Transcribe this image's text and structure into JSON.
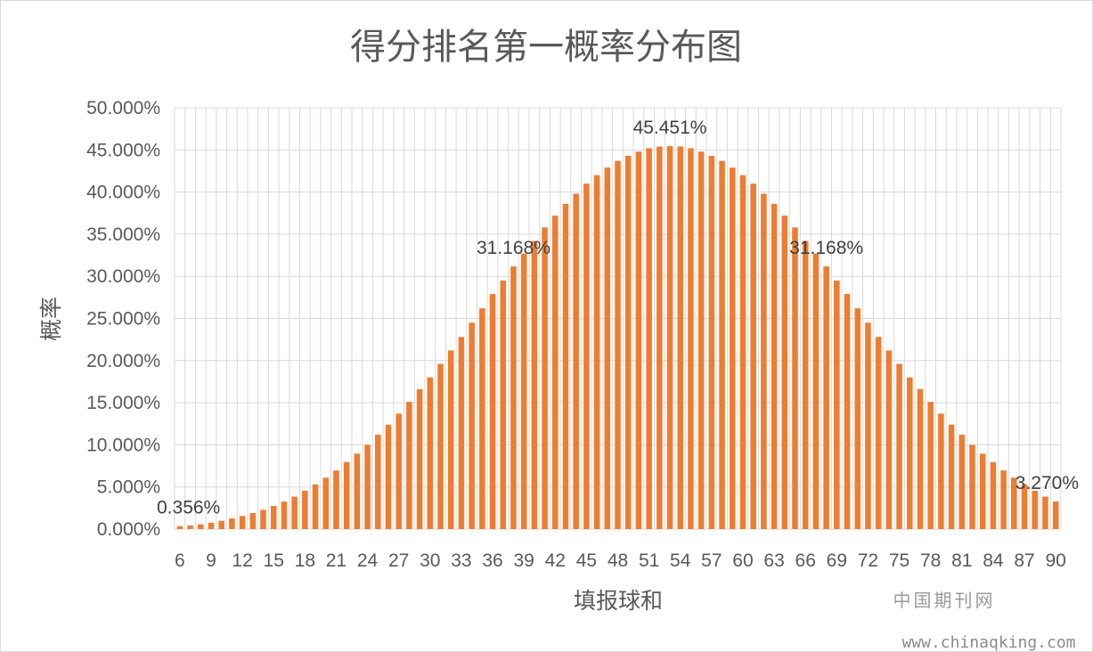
{
  "chart_data": {
    "type": "bar",
    "title": "得分排名第一概率分布图",
    "xlabel": "填报球和",
    "ylabel": "概率",
    "ylim": [
      0,
      50
    ],
    "y_ticks": [
      "0.000%",
      "5.000%",
      "10.000%",
      "15.000%",
      "20.000%",
      "25.000%",
      "30.000%",
      "35.000%",
      "40.000%",
      "45.000%",
      "50.000%"
    ],
    "x_tick_labels": [
      "6",
      "9",
      "12",
      "15",
      "18",
      "21",
      "24",
      "27",
      "30",
      "33",
      "36",
      "39",
      "42",
      "45",
      "48",
      "51",
      "54",
      "57",
      "60",
      "63",
      "66",
      "69",
      "72",
      "75",
      "78",
      "81",
      "84",
      "87",
      "90"
    ],
    "grid": "vertical-and-horizontal",
    "bar_color": "#ED7D31",
    "categories": [
      6,
      7,
      8,
      9,
      10,
      11,
      12,
      13,
      14,
      15,
      16,
      17,
      18,
      19,
      20,
      21,
      22,
      23,
      24,
      25,
      26,
      27,
      28,
      29,
      30,
      31,
      32,
      33,
      34,
      35,
      36,
      37,
      38,
      39,
      40,
      41,
      42,
      43,
      44,
      45,
      46,
      47,
      48,
      49,
      50,
      51,
      52,
      53,
      54,
      55,
      56,
      57,
      58,
      59,
      60,
      61,
      62,
      63,
      64,
      65,
      66,
      67,
      68,
      69,
      70,
      71,
      72,
      73,
      74,
      75,
      76,
      77,
      78,
      79,
      80,
      81,
      82,
      83,
      84,
      85,
      86,
      87,
      88,
      89,
      90
    ],
    "values": [
      0.356,
      0.43,
      0.57,
      0.75,
      0.99,
      1.26,
      1.56,
      1.9,
      2.28,
      2.75,
      3.26,
      3.85,
      4.55,
      5.3,
      6.1,
      6.95,
      7.95,
      8.95,
      10.0,
      11.2,
      12.4,
      13.7,
      15.1,
      16.6,
      18.0,
      19.6,
      21.2,
      22.8,
      24.5,
      26.2,
      27.9,
      29.5,
      31.168,
      32.7,
      34.2,
      35.8,
      37.2,
      38.6,
      39.8,
      41.0,
      42.0,
      42.9,
      43.7,
      44.3,
      44.8,
      45.2,
      45.4,
      45.451,
      45.4,
      45.2,
      44.8,
      44.3,
      43.7,
      42.9,
      42.0,
      41.0,
      39.8,
      38.6,
      37.2,
      35.8,
      34.2,
      32.7,
      31.168,
      29.5,
      27.9,
      26.2,
      24.5,
      22.8,
      21.2,
      19.6,
      18.0,
      16.6,
      15.1,
      13.7,
      12.4,
      11.2,
      10.0,
      8.95,
      7.95,
      6.95,
      6.1,
      5.3,
      4.55,
      3.85,
      3.27
    ],
    "data_labels": [
      {
        "index": 0,
        "text": "0.356%"
      },
      {
        "index": 32,
        "text": "31.168%"
      },
      {
        "index": 47,
        "text": "45.451%"
      },
      {
        "index": 62,
        "text": "31.168%"
      },
      {
        "index": 84,
        "text": "3.270%"
      }
    ]
  },
  "watermark": {
    "line1": "中国期刊网",
    "line2": "www.chinaqking.com"
  }
}
